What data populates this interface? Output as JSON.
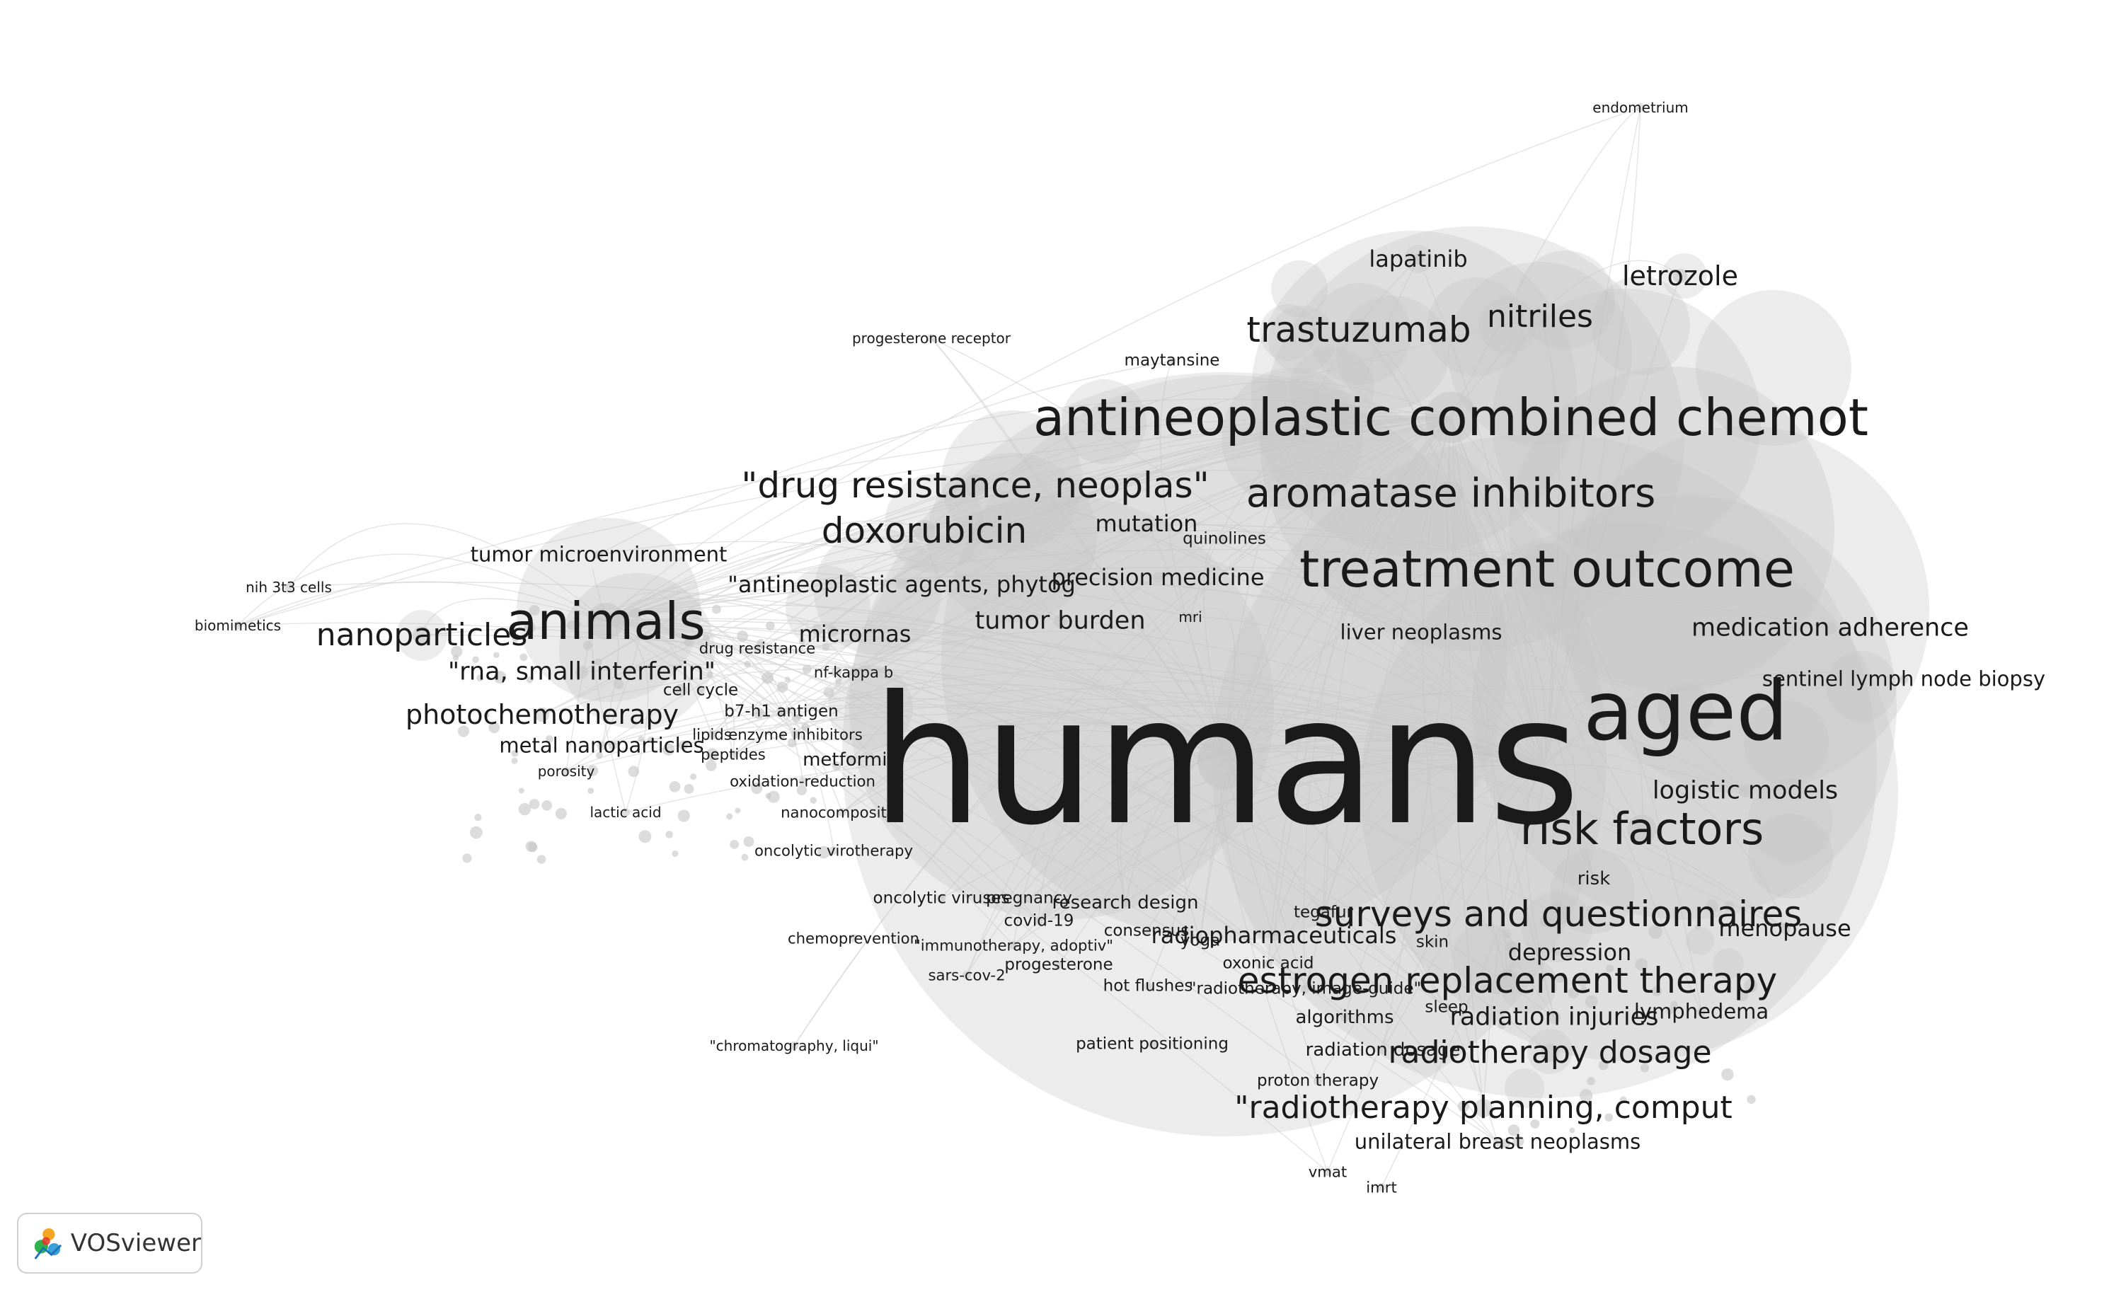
{
  "app": {
    "logo_text": "VOSviewer",
    "logo_icon": "vosviewer-logo-icon"
  },
  "colors": {
    "node": "#c4c4c4",
    "edge": "#d9d9d9",
    "label": "#1a1a1a"
  },
  "labels": [
    {
      "t": "endometrium",
      "w": 1
    },
    {
      "t": "lapatinib",
      "w": 3
    },
    {
      "t": "letrozole",
      "w": 4
    },
    {
      "t": "nitriles",
      "w": 5
    },
    {
      "t": "trastuzumab",
      "w": 6
    },
    {
      "t": "progesterone receptor",
      "w": 1
    },
    {
      "t": "maytansine",
      "w": 1.5
    },
    {
      "t": "antineoplastic combined chemot",
      "w": 14
    },
    {
      "t": "\"drug resistance, neoplas\"",
      "w": 6
    },
    {
      "t": "aromatase inhibitors",
      "w": 7
    },
    {
      "t": "doxorubicin",
      "w": 6
    },
    {
      "t": "mutation",
      "w": 3
    },
    {
      "t": "quinolines",
      "w": 1.5
    },
    {
      "t": "treatment outcome",
      "w": 14
    },
    {
      "t": "tumor microenvironment",
      "w": 2.5
    },
    {
      "t": "nih 3t3 cells",
      "w": 1
    },
    {
      "t": "\"antineoplastic agents, phytog",
      "w": 3
    },
    {
      "t": "precision medicine",
      "w": 3
    },
    {
      "t": "animals",
      "w": 10
    },
    {
      "t": "biomimetics",
      "w": 1
    },
    {
      "t": "nanoparticles",
      "w": 5
    },
    {
      "t": "tumor burden",
      "w": 3.5
    },
    {
      "t": "mri",
      "w": 1
    },
    {
      "t": "micrornas",
      "w": 3
    },
    {
      "t": "liver neoplasms",
      "w": 2.5
    },
    {
      "t": "medication adherence",
      "w": 3.5
    },
    {
      "t": "drug resistance",
      "w": 1.2
    },
    {
      "t": "\"rna, small interferin\"",
      "w": 3.5
    },
    {
      "t": "nf-kappa b",
      "w": 1.2
    },
    {
      "t": "sentinel lymph node biopsy",
      "w": 2.5
    },
    {
      "t": "aged",
      "w": 20
    },
    {
      "t": "cell cycle",
      "w": 1.5
    },
    {
      "t": "humans",
      "w": 40
    },
    {
      "t": "photochemotherapy",
      "w": 4
    },
    {
      "t": "b7-h1 antigen",
      "w": 1.5
    },
    {
      "t": "lipids",
      "w": 1.2
    },
    {
      "t": "enzyme inhibitors",
      "w": 1.2
    },
    {
      "t": "metal nanoparticles",
      "w": 2.5
    },
    {
      "t": "peptides",
      "w": 1.2
    },
    {
      "t": "metformin",
      "w": 2
    },
    {
      "t": "porosity",
      "w": 1
    },
    {
      "t": "oxidation-reduction",
      "w": 1.2
    },
    {
      "t": "logistic models",
      "w": 3.5
    },
    {
      "t": "lactic acid",
      "w": 1
    },
    {
      "t": "nanocomposites",
      "w": 1.2
    },
    {
      "t": "risk factors",
      "w": 8
    },
    {
      "t": "oncolytic virotherapy",
      "w": 1.2
    },
    {
      "t": "risk",
      "w": 2
    },
    {
      "t": "oncolytic viruses",
      "w": 1.5
    },
    {
      "t": "pregnancy",
      "w": 1.5
    },
    {
      "t": "research design",
      "w": 2
    },
    {
      "t": "tegafur",
      "w": 1.5
    },
    {
      "t": "surveys and questionnaires",
      "w": 6
    },
    {
      "t": "covid-19",
      "w": 1.5
    },
    {
      "t": "menopause",
      "w": 3
    },
    {
      "t": "consensus",
      "w": 1.5
    },
    {
      "t": "chemoprevention",
      "w": 1.2
    },
    {
      "t": "yoga",
      "w": 1.5
    },
    {
      "t": "radiopharmaceuticals",
      "w": 3
    },
    {
      "t": "\"immunotherapy, adoptiv\"",
      "w": 1.2
    },
    {
      "t": "skin",
      "w": 1.5
    },
    {
      "t": "depression",
      "w": 3
    },
    {
      "t": "progesterone",
      "w": 1.5
    },
    {
      "t": "oxonic acid",
      "w": 1.5
    },
    {
      "t": "sars-cov-2",
      "w": 1.2
    },
    {
      "t": "estrogen replacement therapy",
      "w": 6
    },
    {
      "t": "hot flushes",
      "w": 1.5
    },
    {
      "t": "\"radiotherapy, image-guide\"",
      "w": 1.5
    },
    {
      "t": "sleep",
      "w": 1.5
    },
    {
      "t": "lymphedema",
      "w": 2.5
    },
    {
      "t": "algorithms",
      "w": 2
    },
    {
      "t": "radiation injuries",
      "w": 3.5
    },
    {
      "t": "\"chromatography, liqui\"",
      "w": 1
    },
    {
      "t": "patient positioning",
      "w": 1.5
    },
    {
      "t": "radiation dosage",
      "w": 2
    },
    {
      "t": "radiotherapy dosage",
      "w": 5
    },
    {
      "t": "proton therapy",
      "w": 1.5
    },
    {
      "t": "\"radiotherapy planning, comput",
      "w": 5
    },
    {
      "t": "unilateral breast neoplasms",
      "w": 2.5
    },
    {
      "t": "vmat",
      "w": 1.2
    },
    {
      "t": "imrt",
      "w": 1.2
    }
  ]
}
